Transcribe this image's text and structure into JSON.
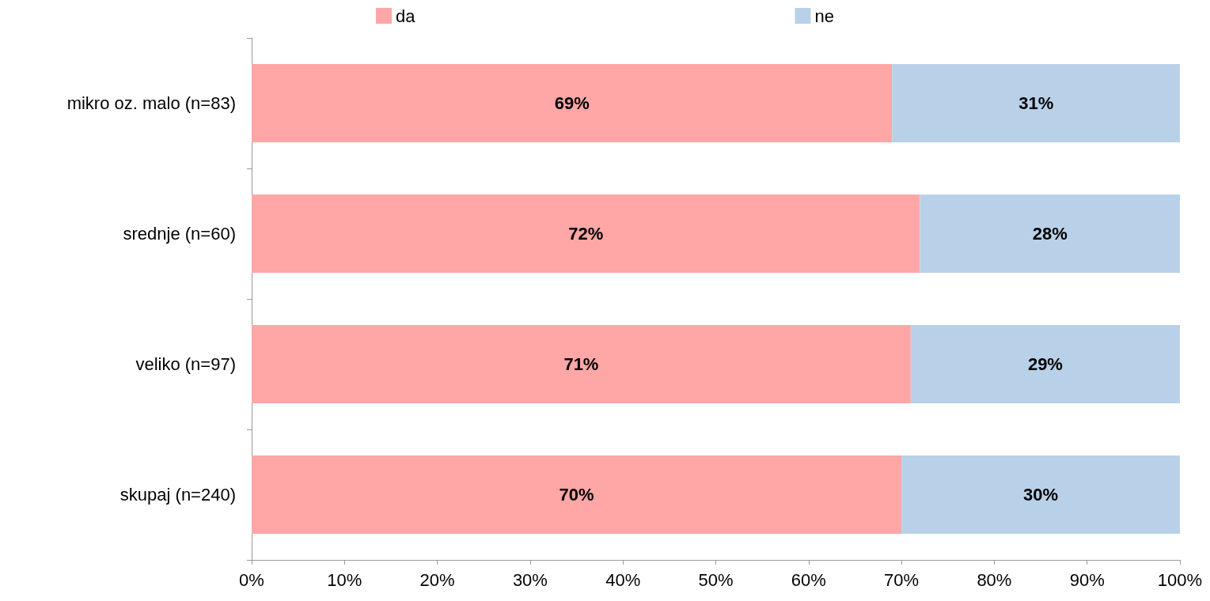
{
  "chart_data": {
    "type": "bar",
    "orientation": "horizontal",
    "stacked": true,
    "categories": [
      "mikro oz. malo (n=83)",
      "srednje (n=60)",
      "veliko (n=97)",
      "skupaj (n=240)"
    ],
    "series": [
      {
        "name": "da",
        "color": "#ffa6a6",
        "values": [
          69,
          72,
          71,
          70
        ]
      },
      {
        "name": "ne",
        "color": "#b9d1e8",
        "values": [
          31,
          28,
          29,
          30
        ]
      }
    ],
    "value_labels": [
      [
        "69%",
        "72%",
        "71%",
        "70%"
      ],
      [
        "31%",
        "28%",
        "29%",
        "30%"
      ]
    ],
    "xlim": [
      0,
      100
    ],
    "xticks": [
      {
        "value": 0,
        "label": "0%"
      },
      {
        "value": 10,
        "label": "10%"
      },
      {
        "value": 20,
        "label": "20%"
      },
      {
        "value": 30,
        "label": "30%"
      },
      {
        "value": 40,
        "label": "40%"
      },
      {
        "value": 50,
        "label": "50%"
      },
      {
        "value": 60,
        "label": "60%"
      },
      {
        "value": 70,
        "label": "70%"
      },
      {
        "value": 80,
        "label": "80%"
      },
      {
        "value": 90,
        "label": "90%"
      },
      {
        "value": 100,
        "label": "100%"
      }
    ],
    "grid": false,
    "legend": "top"
  }
}
